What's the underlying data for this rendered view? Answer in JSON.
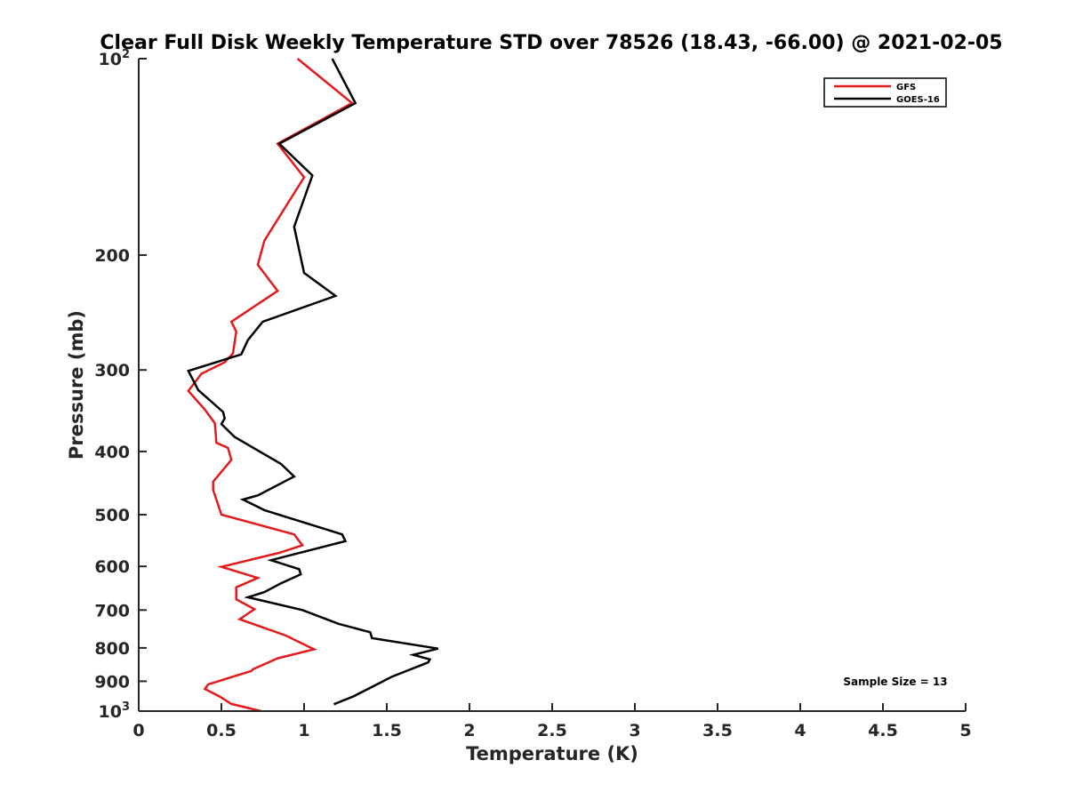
{
  "chart_data": {
    "type": "line",
    "title": "Clear Full Disk Weekly Temperature STD over 78526 (18.43, -66.00) @ 2021-02-05",
    "xlabel": "Temperature (K)",
    "ylabel": "Pressure (mb)",
    "xlim": [
      0,
      5
    ],
    "ylim": [
      100,
      1000
    ],
    "y_scale": "log",
    "y_reversed": true,
    "x_ticks": [
      "0",
      "0.5",
      "1",
      "1.5",
      "2",
      "2.5",
      "3",
      "3.5",
      "4",
      "4.5",
      "5"
    ],
    "y_ticks": [
      {
        "value": 100,
        "base": "10",
        "exp": "2"
      },
      {
        "value": 200,
        "label": "200"
      },
      {
        "value": 300,
        "label": "300"
      },
      {
        "value": 400,
        "label": "400"
      },
      {
        "value": 500,
        "label": "500"
      },
      {
        "value": 600,
        "label": "600"
      },
      {
        "value": 700,
        "label": "700"
      },
      {
        "value": 800,
        "label": "800"
      },
      {
        "value": 900,
        "label": "900"
      },
      {
        "value": 1000,
        "base": "10",
        "exp": "3"
      }
    ],
    "legend_position": "top-right",
    "annotation": "Sample Size = 13",
    "series": [
      {
        "name": "GFS",
        "color": "#e31a1c",
        "x": [
          0.96,
          1.29,
          0.84,
          1.0,
          0.76,
          0.72,
          0.84,
          0.56,
          0.59,
          0.57,
          0.52,
          0.38,
          0.3,
          0.4,
          0.46,
          0.47,
          0.54,
          0.56,
          0.45,
          0.45,
          0.5,
          0.94,
          0.99,
          0.85,
          0.5,
          0.72,
          0.59,
          0.59,
          0.7,
          0.61,
          0.89,
          1.06,
          0.84,
          0.69,
          0.68,
          0.42,
          0.4,
          0.49,
          0.56,
          0.74
        ],
        "y": [
          100,
          117,
          135,
          152,
          190,
          207,
          227,
          253,
          262,
          283,
          292,
          304,
          323,
          345,
          362,
          388,
          395,
          412,
          445,
          458,
          500,
          536,
          557,
          572,
          601,
          625,
          646,
          674,
          698,
          723,
          766,
          804,
          830,
          863,
          868,
          910,
          925,
          950,
          975,
          1000
        ]
      },
      {
        "name": "GOES-16",
        "color": "#000000",
        "x": [
          1.17,
          1.31,
          0.85,
          1.05,
          0.94,
          1.0,
          1.19,
          0.75,
          0.66,
          0.62,
          0.3,
          0.36,
          0.51,
          0.52,
          0.5,
          0.58,
          0.86,
          0.94,
          0.72,
          0.63,
          0.76,
          1.23,
          1.25,
          0.8,
          0.97,
          0.98,
          0.86,
          0.76,
          0.66,
          0.99,
          1.21,
          1.4,
          1.41,
          1.81,
          1.66,
          1.76,
          1.75,
          1.53,
          1.3,
          1.18
        ],
        "y": [
          100,
          117,
          135,
          151,
          181,
          213,
          231,
          253,
          270,
          284,
          301,
          322,
          348,
          356,
          363,
          380,
          418,
          437,
          467,
          474,
          492,
          536,
          549,
          587,
          606,
          617,
          637,
          657,
          669,
          700,
          735,
          757,
          773,
          802,
          820,
          833,
          842,
          886,
          949,
          976
        ]
      }
    ]
  }
}
